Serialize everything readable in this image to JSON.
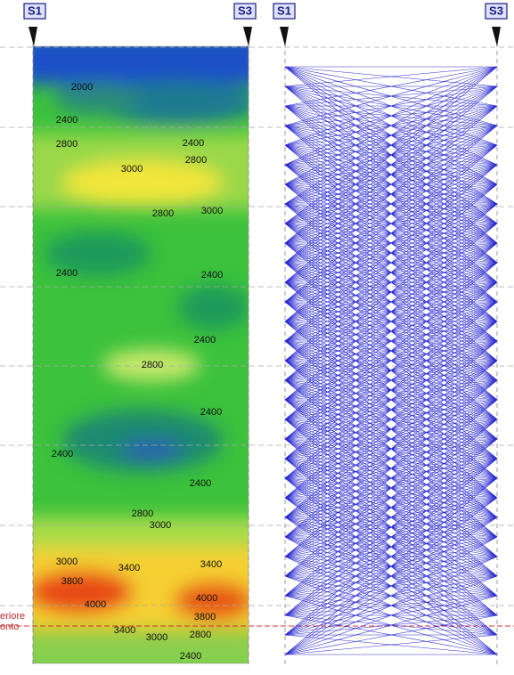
{
  "boreholes": [
    "S1",
    "S3",
    "S1",
    "S3"
  ],
  "contour_labels": [
    2000,
    2400,
    2800,
    2400,
    2800,
    3000,
    2800,
    3000,
    2400,
    2400,
    2400,
    2800,
    2400,
    2400,
    2400,
    2800,
    3000,
    3000,
    3400,
    3400,
    3800,
    4000,
    4000,
    3800,
    3400,
    3000,
    2800,
    2400
  ],
  "cutoff_labels": [
    "eriore",
    "onto"
  ]
}
